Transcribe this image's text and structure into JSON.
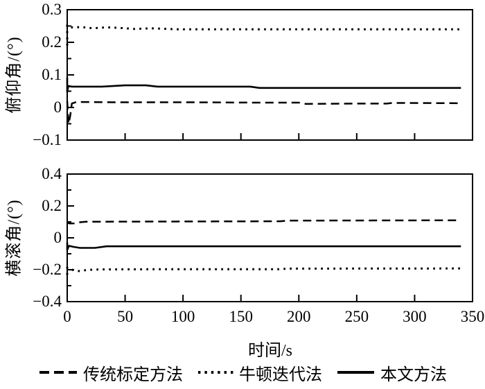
{
  "figure": {
    "background": "#ffffff",
    "ink_color": "#000000"
  },
  "chart_data": {
    "type": "line",
    "title": "",
    "xlabel": "时间/s",
    "x_range": [
      0,
      350
    ],
    "x_ticks": [
      0,
      50,
      100,
      150,
      200,
      250,
      300,
      350
    ],
    "x_tick_labels": [
      "0",
      "50",
      "100",
      "150",
      "200",
      "250",
      "300",
      "350"
    ],
    "grid": false,
    "legend": {
      "position": "bottom",
      "entries": [
        {
          "label": "传统标定方法",
          "style": "dashed"
        },
        {
          "label": "牛顿迭代法",
          "style": "dotted"
        },
        {
          "label": "本文方法",
          "style": "solid"
        }
      ]
    },
    "subplots": [
      {
        "ylabel": "俯仰角/(°)",
        "ylim": [
          -0.1,
          0.3
        ],
        "yticks": [
          0.3,
          0.2,
          0.1,
          0,
          -0.1
        ],
        "ytick_labels": [
          "0.3",
          "0.2",
          "0.1",
          "0",
          "−0.1"
        ],
        "yminor_ticks": [
          0.25,
          0.15,
          0.05,
          -0.05
        ],
        "series": [
          {
            "name": "传统标定方法",
            "style": "dashed",
            "x": [
              0,
              0.5,
              1.2,
              2.5,
              4,
              8,
              40,
              100,
              160,
              200,
              206,
              250,
              276,
              281,
              340
            ],
            "y": [
              0.02,
              -0.012,
              -0.05,
              -0.028,
              0.012,
              0.017,
              0.016,
              0.016,
              0.015,
              0.015,
              0.011,
              0.012,
              0.012,
              0.014,
              0.013
            ]
          },
          {
            "name": "牛顿迭代法",
            "style": "dotted",
            "x": [
              0,
              0,
              2,
              5,
              12,
              22,
              34,
              46,
              58,
              72,
              95,
              340
            ],
            "y": [
              0.19,
              0.253,
              0.248,
              0.245,
              0.247,
              0.243,
              0.246,
              0.244,
              0.241,
              0.243,
              0.24,
              0.24
            ]
          },
          {
            "name": "本文方法",
            "style": "solid",
            "x": [
              0,
              0,
              1,
              4,
              30,
              50,
              68,
              78,
              120,
              158,
              166,
              340
            ],
            "y": [
              0.092,
              0.048,
              0.066,
              0.064,
              0.064,
              0.068,
              0.068,
              0.064,
              0.064,
              0.064,
              0.06,
              0.06
            ]
          }
        ]
      },
      {
        "ylabel": "横滚角/(°)",
        "ylim": [
          -0.4,
          0.4
        ],
        "yticks": [
          0.4,
          0.2,
          0,
          -0.2,
          -0.4
        ],
        "ytick_labels": [
          "0.4",
          "0.2",
          "0",
          "−0.2",
          "−0.4"
        ],
        "yminor_ticks": [
          0.3,
          0.1,
          -0.1,
          -0.3
        ],
        "series": [
          {
            "name": "传统标定方法",
            "style": "dashed",
            "x": [
              0,
              0.6,
              2,
              6,
              10,
              16,
              70,
              130,
              184,
              191,
              340
            ],
            "y": [
              0.088,
              0.096,
              0.09,
              0.091,
              0.097,
              0.101,
              0.102,
              0.103,
              0.104,
              0.108,
              0.11
            ]
          },
          {
            "name": "牛顿迭代法",
            "style": "dotted",
            "x": [
              0,
              0,
              2.5,
              7,
              11,
              17,
              28,
              70,
              150,
              183,
              190,
              340
            ],
            "y": [
              -0.232,
              -0.186,
              -0.196,
              -0.206,
              -0.209,
              -0.201,
              -0.198,
              -0.197,
              -0.197,
              -0.197,
              -0.193,
              -0.192
            ]
          },
          {
            "name": "本文方法",
            "style": "solid",
            "x": [
              0,
              0,
              1.5,
              5,
              11,
              24,
              34,
              340
            ],
            "y": [
              -0.028,
              -0.076,
              -0.05,
              -0.056,
              -0.063,
              -0.063,
              -0.053,
              -0.053
            ]
          }
        ]
      }
    ]
  }
}
